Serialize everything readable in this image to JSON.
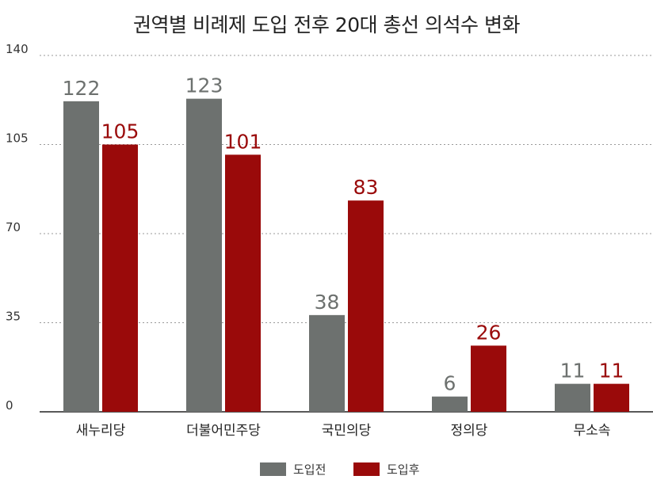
{
  "chart_data": {
    "type": "bar",
    "title": "권역별 비례제 도입 전후 20대 총선 의석수 변화",
    "categories": [
      "새누리당",
      "더불어민주당",
      "국민의당",
      "정의당",
      "무소속"
    ],
    "series": [
      {
        "name": "도입전",
        "color": "#6d716f",
        "values": [
          122,
          123,
          38,
          6,
          11
        ]
      },
      {
        "name": "도입후",
        "color": "#9a0a0a",
        "values": [
          105,
          101,
          83,
          26,
          11
        ]
      }
    ],
    "yticks": [
      0,
      35,
      70,
      105,
      140
    ],
    "ylim": [
      0,
      140
    ],
    "grid": true,
    "legend_position": "bottom-center"
  }
}
